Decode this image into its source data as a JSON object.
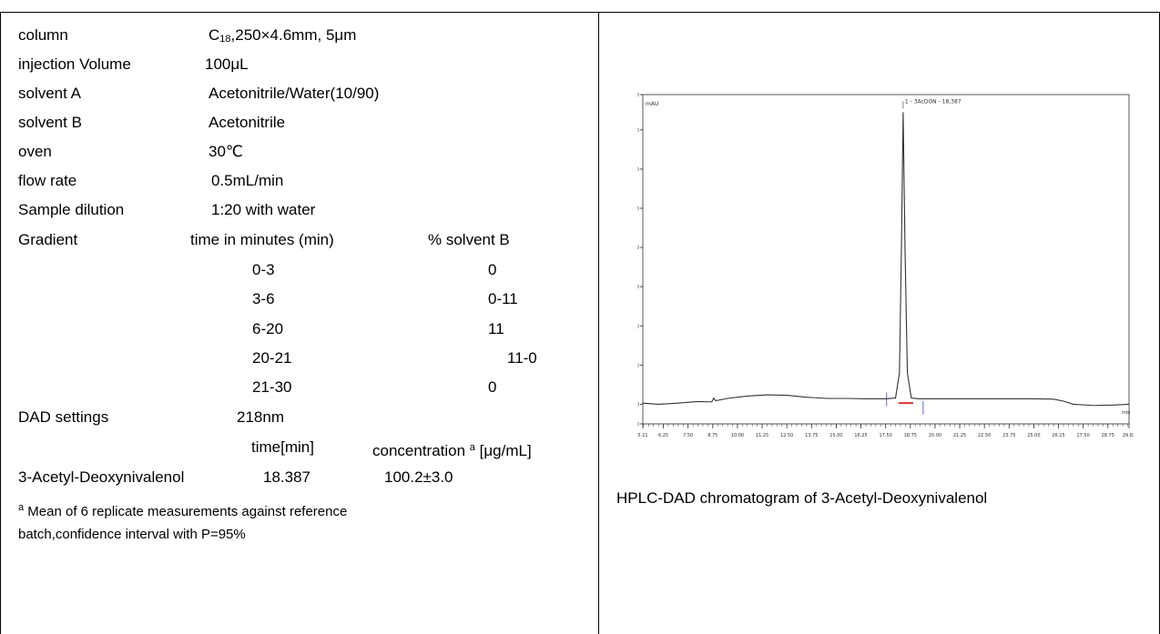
{
  "params": {
    "column_label": "column",
    "column_value_prefix": "C",
    "column_value_sub": "18",
    "column_value_rest": ",250×4.6mm, 5μm",
    "injection_label": "injection Volume",
    "injection_value": "100μL",
    "solvent_a_label": "solvent A",
    "solvent_a_value": "Acetonitrile/Water(10/90)",
    "solvent_b_label": "solvent B",
    "solvent_b_value": "Acetonitrile",
    "oven_label": "oven",
    "oven_value": "30℃",
    "flow_label": "flow rate",
    "flow_value": "0.5mL/min",
    "dilution_label": "Sample dilution",
    "dilution_value": "1:20 with water"
  },
  "gradient": {
    "label": "Gradient",
    "time_header": "time in minutes (min)",
    "solvent_header": "% solvent B",
    "rows": [
      {
        "time": "0-3",
        "b": "0"
      },
      {
        "time": "3-6",
        "b": "0-11"
      },
      {
        "time": "6-20",
        "b": "11"
      },
      {
        "time": "20-21",
        "b": "11-0"
      },
      {
        "time": "21-30",
        "b": "0"
      }
    ]
  },
  "dad": {
    "label": "DAD settings",
    "value": "218nm"
  },
  "results": {
    "time_header": "time[min]",
    "conc_header_pre": "concentration ",
    "conc_header_sup": "a",
    "conc_header_post": " [μg/mL]",
    "compound": "3-Acetyl-Deoxynivalenol",
    "time": "18.387",
    "conc": "100.2±3.0"
  },
  "footnote": {
    "sup": "a",
    "line1": " Mean of 6 replicate measurements against reference",
    "line2": "batch,confidence interval with P=95%"
  },
  "caption": "HPLC-DAD chromatogram of 3-Acetyl-Deoxynivalenol",
  "chart_data": {
    "type": "line",
    "ylabel": "mAU",
    "xlabel": "min",
    "ylim": [
      -5.0,
      79.0
    ],
    "xlim": [
      5.21,
      29.82
    ],
    "y_ticks": [
      "-5.0",
      "0.0",
      "10.0",
      "20.0",
      "30.0",
      "40.0",
      "50.0",
      "60.0",
      "70.0",
      "79.0"
    ],
    "y_tick_values": [
      -5,
      0,
      10,
      20,
      30,
      40,
      50,
      60,
      70,
      79
    ],
    "x_ticks": [
      "5.21",
      "6.25",
      "7.50",
      "8.75",
      "10.00",
      "11.25",
      "12.50",
      "13.75",
      "15.00",
      "16.25",
      "17.50",
      "18.75",
      "20.00",
      "21.25",
      "22.50",
      "23.75",
      "25.00",
      "26.25",
      "27.50",
      "28.75",
      "29.82"
    ],
    "x_tick_values": [
      5.21,
      6.25,
      7.5,
      8.75,
      10,
      11.25,
      12.5,
      13.75,
      15,
      16.25,
      17.5,
      18.75,
      20,
      21.25,
      22.5,
      23.75,
      25,
      26.25,
      27.5,
      28.75,
      29.82
    ],
    "peak_label": "1 - 3AcDON - 18,387",
    "series": [
      {
        "color": "#333333",
        "x": [
          5.21,
          6.0,
          7.0,
          8.0,
          8.7,
          8.8,
          8.9,
          9.5,
          10.5,
          11.5,
          12.5,
          13.5,
          14.5,
          15.5,
          16.5,
          17.5,
          18.0,
          18.2,
          18.3,
          18.387,
          18.48,
          18.6,
          18.8,
          19.2,
          20.0,
          21.0,
          22.0,
          23.0,
          24.0,
          25.0,
          26.0,
          26.5,
          27.0,
          28.0,
          29.0,
          29.82
        ],
        "y": [
          0.3,
          0.0,
          0.3,
          0.7,
          0.6,
          1.6,
          0.9,
          1.5,
          2.1,
          2.4,
          2.3,
          1.8,
          1.5,
          1.5,
          1.4,
          1.4,
          1.6,
          8.0,
          40.0,
          74.5,
          40.0,
          8.0,
          1.6,
          1.4,
          1.4,
          1.4,
          1.4,
          1.4,
          1.4,
          1.4,
          1.3,
          0.8,
          0.0,
          -0.3,
          -0.2,
          0.0
        ]
      }
    ],
    "baseline_color": "#e03030",
    "marker_color": "#3344cc"
  }
}
